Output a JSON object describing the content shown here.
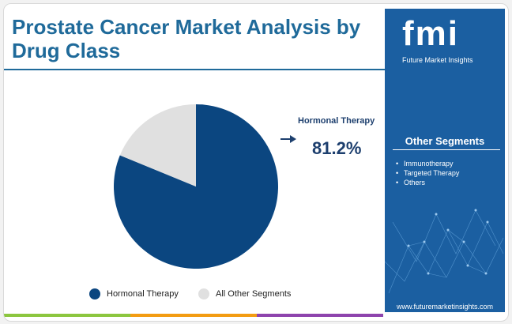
{
  "title": "Prostate Cancer Market Analysis by Drug Class",
  "brand": {
    "logo": "fmi",
    "name": "Future Market Insights",
    "website": "www.futuremarketinsights.com"
  },
  "callout": {
    "label": "Hormonal Therapy",
    "value": "81.2%"
  },
  "other_segments": {
    "heading": "Other Segments",
    "items": [
      "Immunotherapy",
      "Targeted Therapy",
      "Others"
    ]
  },
  "colors": {
    "primary": "#0b4680",
    "secondary": "#e0e0e0",
    "title": "#1f6a9a",
    "panel": "#1b5fa1",
    "bar": [
      "#8cc63f",
      "#f39c12",
      "#8e44ad",
      "#1b5fa1"
    ]
  },
  "chart_data": {
    "type": "pie",
    "title": "",
    "slices": [
      {
        "name": "Hormonal Therapy",
        "value": 81.2,
        "color": "#0b4680"
      },
      {
        "name": "All Other Segments",
        "value": 18.8,
        "color": "#e0e0e0"
      }
    ],
    "legend": {
      "placement": "bottom",
      "entries": [
        "Hormonal Therapy",
        "All Other Segments"
      ]
    }
  }
}
